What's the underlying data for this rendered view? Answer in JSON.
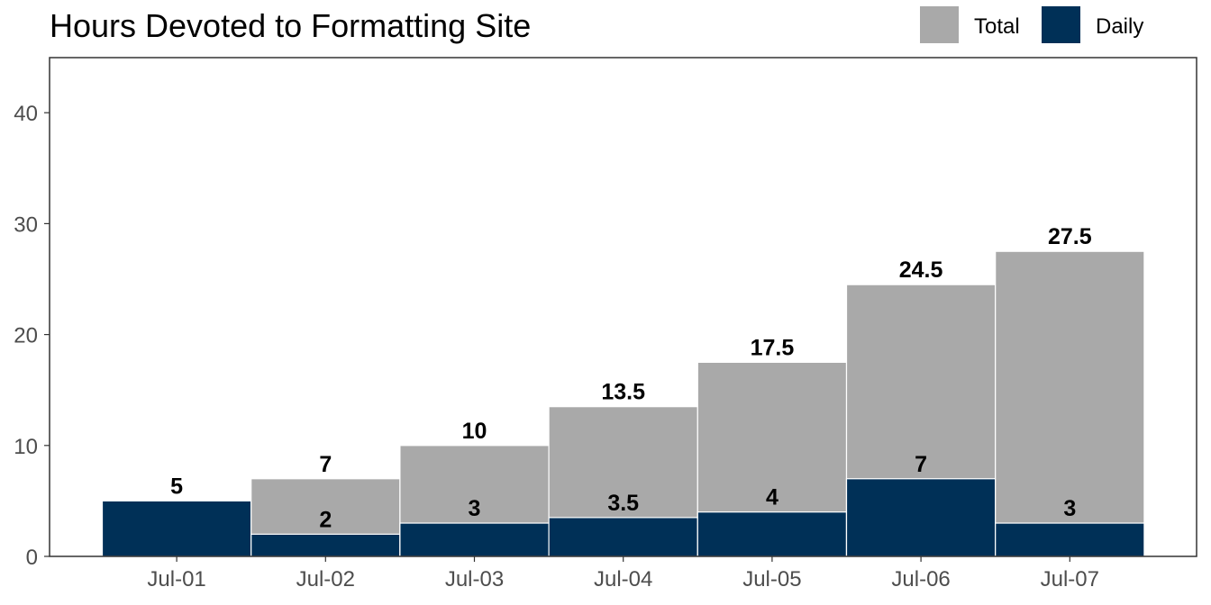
{
  "chart_data": {
    "type": "bar",
    "stacked": true,
    "title": "Hours Devoted to Formatting Site",
    "xlabel": "",
    "ylabel": "",
    "categories": [
      "Jul-01",
      "Jul-02",
      "Jul-03",
      "Jul-04",
      "Jul-05",
      "Jul-06",
      "Jul-07"
    ],
    "series": [
      {
        "name": "Total",
        "color": "#a9a9a9",
        "values": [
          5,
          7,
          10,
          13.5,
          17.5,
          24.5,
          27.5
        ]
      },
      {
        "name": "Daily",
        "color": "#003057",
        "values": [
          5,
          2,
          3,
          3.5,
          4,
          7,
          3
        ]
      }
    ],
    "ylim": [
      0,
      45
    ],
    "yticks": [
      0,
      10,
      20,
      30,
      40
    ],
    "grid": false,
    "legend_position": "top-right"
  }
}
